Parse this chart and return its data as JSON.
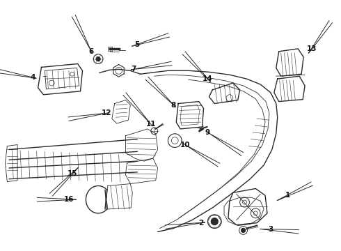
{
  "bg_color": "#ffffff",
  "line_color": "#2a2a2a",
  "label_color": "#111111",
  "figsize": [
    4.9,
    3.6
  ],
  "dpi": 100
}
